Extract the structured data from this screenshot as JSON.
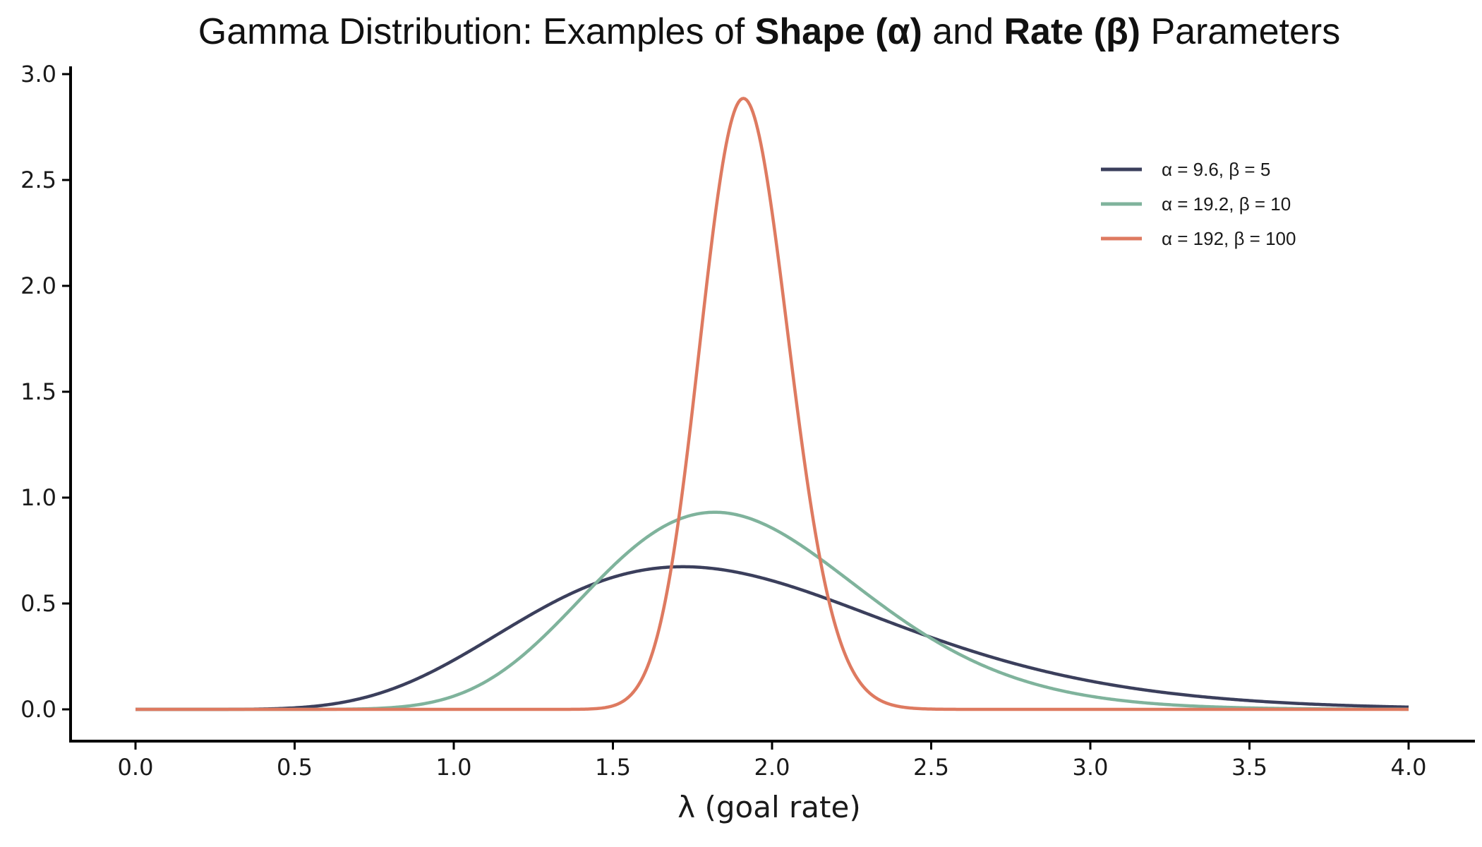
{
  "chart_data": {
    "type": "line",
    "title_parts": [
      {
        "text": "Gamma Distribution: Examples of ",
        "bold": false
      },
      {
        "text": "Shape (α)",
        "bold": true
      },
      {
        "text": " and ",
        "bold": false
      },
      {
        "text": "Rate (β)",
        "bold": true
      },
      {
        "text": " Parameters",
        "bold": false
      }
    ],
    "xlabel": "λ (goal rate)",
    "ylabel": "",
    "xlim": [
      0,
      4
    ],
    "ylim": [
      0,
      3
    ],
    "x_ticks": [
      0.0,
      0.5,
      1.0,
      1.5,
      2.0,
      2.5,
      3.0,
      3.5,
      4.0
    ],
    "x_tick_labels": [
      "0.0",
      "0.5",
      "1.0",
      "1.5",
      "2.0",
      "2.5",
      "3.0",
      "3.5",
      "4.0"
    ],
    "y_ticks": [
      0.0,
      0.5,
      1.0,
      1.5,
      2.0,
      2.5,
      3.0
    ],
    "y_tick_labels": [
      "0.0",
      "0.5",
      "1.0",
      "1.5",
      "2.0",
      "2.5",
      "3.0"
    ],
    "grid": false,
    "legend_position": "top-right",
    "series": [
      {
        "name": "α = 9.6, β = 5",
        "distribution": "gamma",
        "shape": 9.6,
        "rate": 5,
        "color": "#3b3f5c"
      },
      {
        "name": "α = 19.2, β = 10",
        "distribution": "gamma",
        "shape": 19.2,
        "rate": 10,
        "color": "#7fb39c"
      },
      {
        "name": "α = 192, β = 100",
        "distribution": "gamma",
        "shape": 192,
        "rate": 100,
        "color": "#de7a60"
      }
    ]
  }
}
